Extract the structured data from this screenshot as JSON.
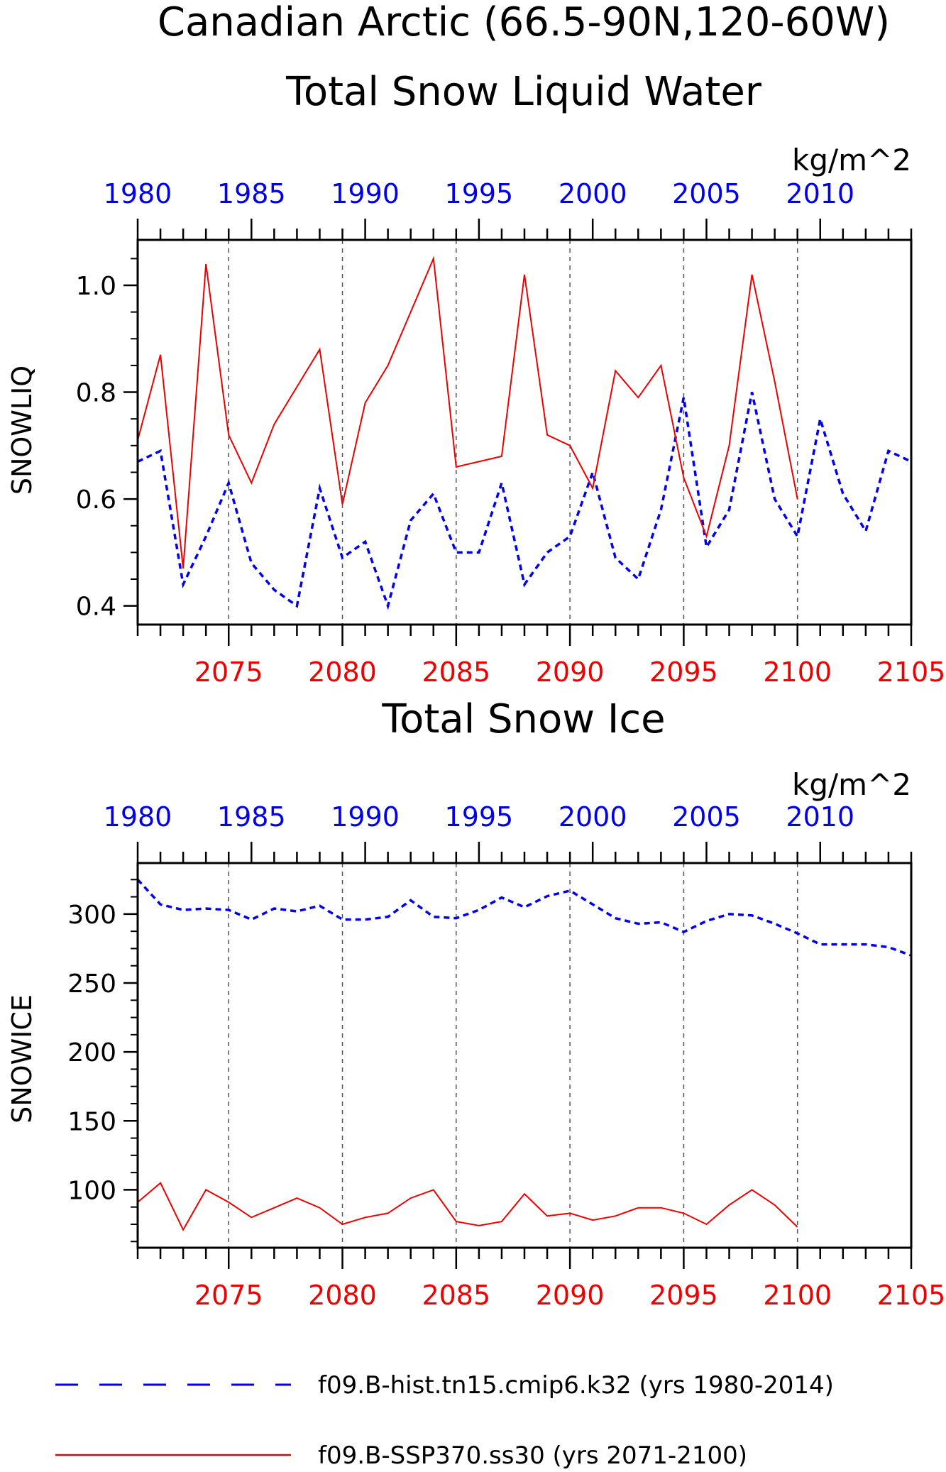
{
  "title_line1": "Canadian Arctic (66.5-90N,120-60W)",
  "colors": {
    "hist": "#0000ee",
    "ssp": "#ee0000",
    "axis": "#000000",
    "grid": "#555555"
  },
  "legend": [
    {
      "label": "f09.B-hist.tn15.cmip6.k32 (yrs 1980-2014)",
      "color": "#0000ee",
      "dash": "dashed"
    },
    {
      "label": "f09.B-SSP370.ss30 (yrs 2071-2100)",
      "color": "#ee0000",
      "dash": "solid"
    }
  ],
  "chart_data": [
    {
      "type": "line",
      "title": "Total Snow Liquid Water",
      "units": "kg/m^2",
      "ylabel": "SNOWLIQ",
      "ylim": [
        0.365,
        1.085
      ],
      "yticks": [
        0.4,
        0.6,
        0.8,
        1.0
      ],
      "yticklabels": [
        "0.4",
        "0.6",
        "0.8",
        "1.0"
      ],
      "top_axis": {
        "xlim": [
          1980,
          2014
        ],
        "ticklabels": [
          "1980",
          "1985",
          "1990",
          "1995",
          "2000",
          "2005",
          "2010"
        ],
        "color": "#0000ee"
      },
      "bottom_axis": {
        "xlim": [
          2071,
          2105
        ],
        "ticklabels": [
          "2075",
          "2080",
          "2085",
          "2090",
          "2095",
          "2100",
          "2105"
        ],
        "color": "#ee0000"
      },
      "grid": "vertical dashed at bottom-axis major ticks",
      "series": [
        {
          "name": "f09.B-hist.tn15.cmip6.k32 (yrs 1980-2014)",
          "axis": "top",
          "x": [
            1980,
            1981,
            1982,
            1983,
            1984,
            1985,
            1986,
            1987,
            1988,
            1989,
            1990,
            1991,
            1992,
            1993,
            1994,
            1995,
            1996,
            1997,
            1998,
            1999,
            2000,
            2001,
            2002,
            2003,
            2004,
            2005,
            2006,
            2007,
            2008,
            2009,
            2010,
            2011,
            2012,
            2013,
            2014
          ],
          "values": [
            0.67,
            0.69,
            0.44,
            0.53,
            0.63,
            0.48,
            0.43,
            0.4,
            0.62,
            0.49,
            0.52,
            0.4,
            0.56,
            0.61,
            0.5,
            0.5,
            0.63,
            0.44,
            0.5,
            0.53,
            0.65,
            0.49,
            0.45,
            0.58,
            0.79,
            0.51,
            0.58,
            0.8,
            0.6,
            0.53,
            0.75,
            0.61,
            0.54,
            0.69,
            0.67
          ]
        },
        {
          "name": "f09.B-SSP370.ss30 (yrs 2071-2100)",
          "axis": "bottom",
          "x": [
            2071,
            2072,
            2073,
            2074,
            2075,
            2076,
            2077,
            2078,
            2079,
            2080,
            2081,
            2082,
            2083,
            2084,
            2085,
            2086,
            2087,
            2088,
            2089,
            2090,
            2091,
            2092,
            2093,
            2094,
            2095,
            2096,
            2097,
            2098,
            2099,
            2100
          ],
          "values": [
            0.71,
            0.87,
            0.47,
            1.04,
            0.72,
            0.63,
            0.74,
            0.81,
            0.88,
            0.59,
            0.78,
            0.85,
            0.95,
            1.05,
            0.66,
            0.67,
            0.68,
            1.02,
            0.72,
            0.7,
            0.62,
            0.84,
            0.79,
            0.85,
            0.64,
            0.53,
            0.7,
            1.02,
            0.82,
            0.6
          ]
        }
      ]
    },
    {
      "type": "line",
      "title": "Total Snow Ice",
      "units": "kg/m^2",
      "ylabel": "SNOWICE",
      "ylim": [
        58,
        337
      ],
      "yticks": [
        100,
        150,
        200,
        250,
        300
      ],
      "yticklabels": [
        "100",
        "150",
        "200",
        "250",
        "300"
      ],
      "top_axis": {
        "xlim": [
          1980,
          2014
        ],
        "ticklabels": [
          "1980",
          "1985",
          "1990",
          "1995",
          "2000",
          "2005",
          "2010"
        ],
        "color": "#0000ee"
      },
      "bottom_axis": {
        "xlim": [
          2071,
          2105
        ],
        "ticklabels": [
          "2075",
          "2080",
          "2085",
          "2090",
          "2095",
          "2100",
          "2105"
        ],
        "color": "#ee0000"
      },
      "grid": "vertical dashed at bottom-axis major ticks",
      "series": [
        {
          "name": "f09.B-hist.tn15.cmip6.k32 (yrs 1980-2014)",
          "axis": "top",
          "x": [
            1980,
            1981,
            1982,
            1983,
            1984,
            1985,
            1986,
            1987,
            1988,
            1989,
            1990,
            1991,
            1992,
            1993,
            1994,
            1995,
            1996,
            1997,
            1998,
            1999,
            2000,
            2001,
            2002,
            2003,
            2004,
            2005,
            2006,
            2007,
            2008,
            2009,
            2010,
            2011,
            2012,
            2013,
            2014
          ],
          "values": [
            325,
            307,
            303,
            304,
            303,
            296,
            304,
            302,
            306,
            296,
            296,
            298,
            310,
            298,
            297,
            303,
            312,
            305,
            313,
            317,
            307,
            297,
            293,
            294,
            287,
            295,
            300,
            299,
            293,
            286,
            278,
            278,
            278,
            276,
            270
          ]
        },
        {
          "name": "f09.B-SSP370.ss30 (yrs 2071-2100)",
          "axis": "bottom",
          "x": [
            2071,
            2072,
            2073,
            2074,
            2075,
            2076,
            2077,
            2078,
            2079,
            2080,
            2081,
            2082,
            2083,
            2084,
            2085,
            2086,
            2087,
            2088,
            2089,
            2090,
            2091,
            2092,
            2093,
            2094,
            2095,
            2096,
            2097,
            2098,
            2099,
            2100
          ],
          "values": [
            91,
            105,
            71,
            100,
            91,
            80,
            87,
            94,
            87,
            75,
            80,
            83,
            94,
            100,
            77,
            74,
            77,
            97,
            81,
            83,
            78,
            81,
            87,
            87,
            83,
            75,
            89,
            100,
            89,
            73
          ]
        }
      ]
    }
  ]
}
